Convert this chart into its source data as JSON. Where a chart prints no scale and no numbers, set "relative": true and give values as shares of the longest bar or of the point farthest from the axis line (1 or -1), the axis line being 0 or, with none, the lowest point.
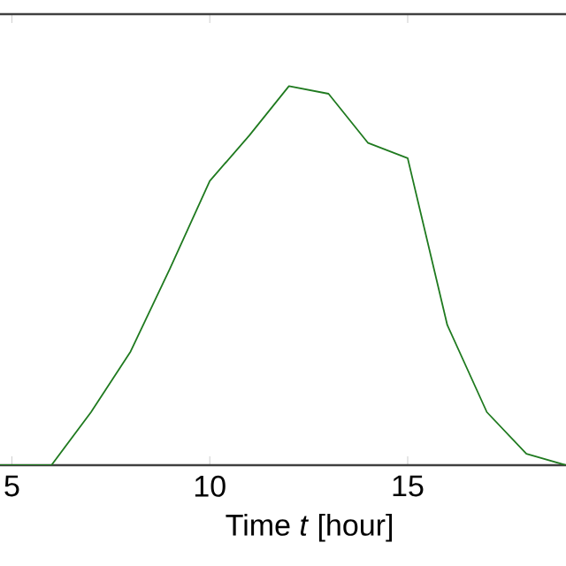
{
  "chart_data": {
    "type": "line",
    "relative": true,
    "xlabel": "Time *t* [hour]",
    "color": "#1f7a1f",
    "x": [
      4.7,
      5,
      6,
      7,
      8,
      9,
      10,
      11,
      12,
      13,
      14,
      15,
      16,
      17,
      18,
      19
    ],
    "values": [
      0,
      0,
      0,
      0.14,
      0.3,
      0.52,
      0.75,
      0.87,
      1,
      0.98,
      0.85,
      0.81,
      0.37,
      0.14,
      0.03,
      0
    ],
    "xlim": [
      4.7,
      19
    ],
    "xticks": [
      5,
      10,
      15
    ]
  }
}
